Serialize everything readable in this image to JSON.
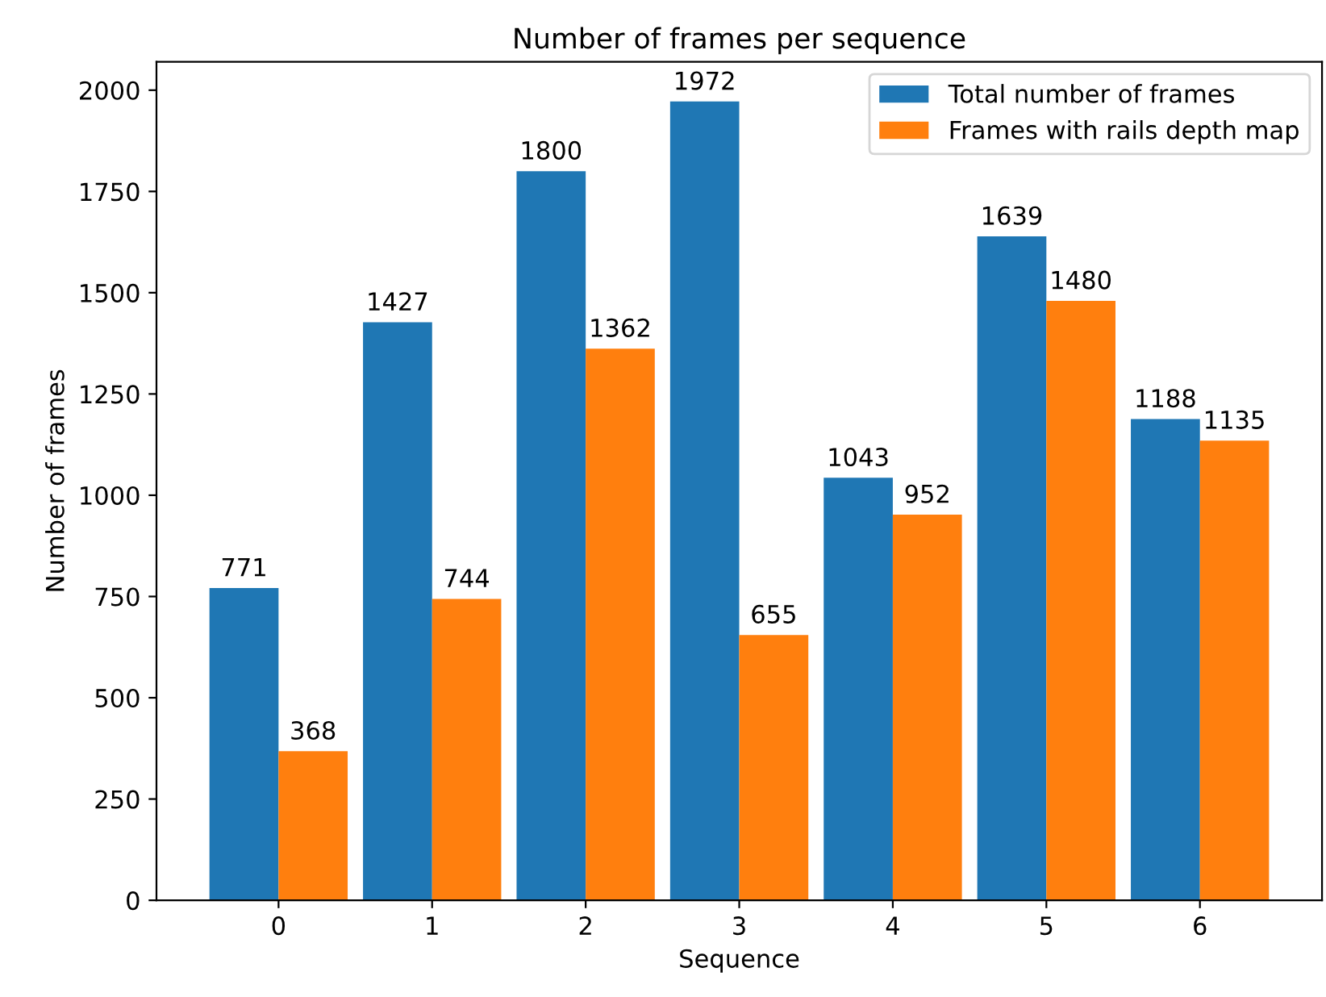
{
  "chart_data": {
    "type": "bar",
    "title": "Number of frames per sequence",
    "xlabel": "Sequence",
    "ylabel": "Number of frames",
    "categories": [
      "0",
      "1",
      "2",
      "3",
      "4",
      "5",
      "6"
    ],
    "series": [
      {
        "name": "Total number of frames",
        "color": "#1f77b4",
        "values": [
          771,
          1427,
          1800,
          1972,
          1043,
          1639,
          1188
        ]
      },
      {
        "name": "Frames with rails depth map",
        "color": "#ff7f0e",
        "values": [
          368,
          744,
          1362,
          655,
          952,
          1480,
          1135
        ]
      }
    ],
    "ylim": [
      0,
      2070
    ],
    "yticks": [
      0,
      250,
      500,
      750,
      1000,
      1250,
      1500,
      1750,
      2000
    ],
    "data_labels": true,
    "legend": "top right",
    "grid": false
  }
}
